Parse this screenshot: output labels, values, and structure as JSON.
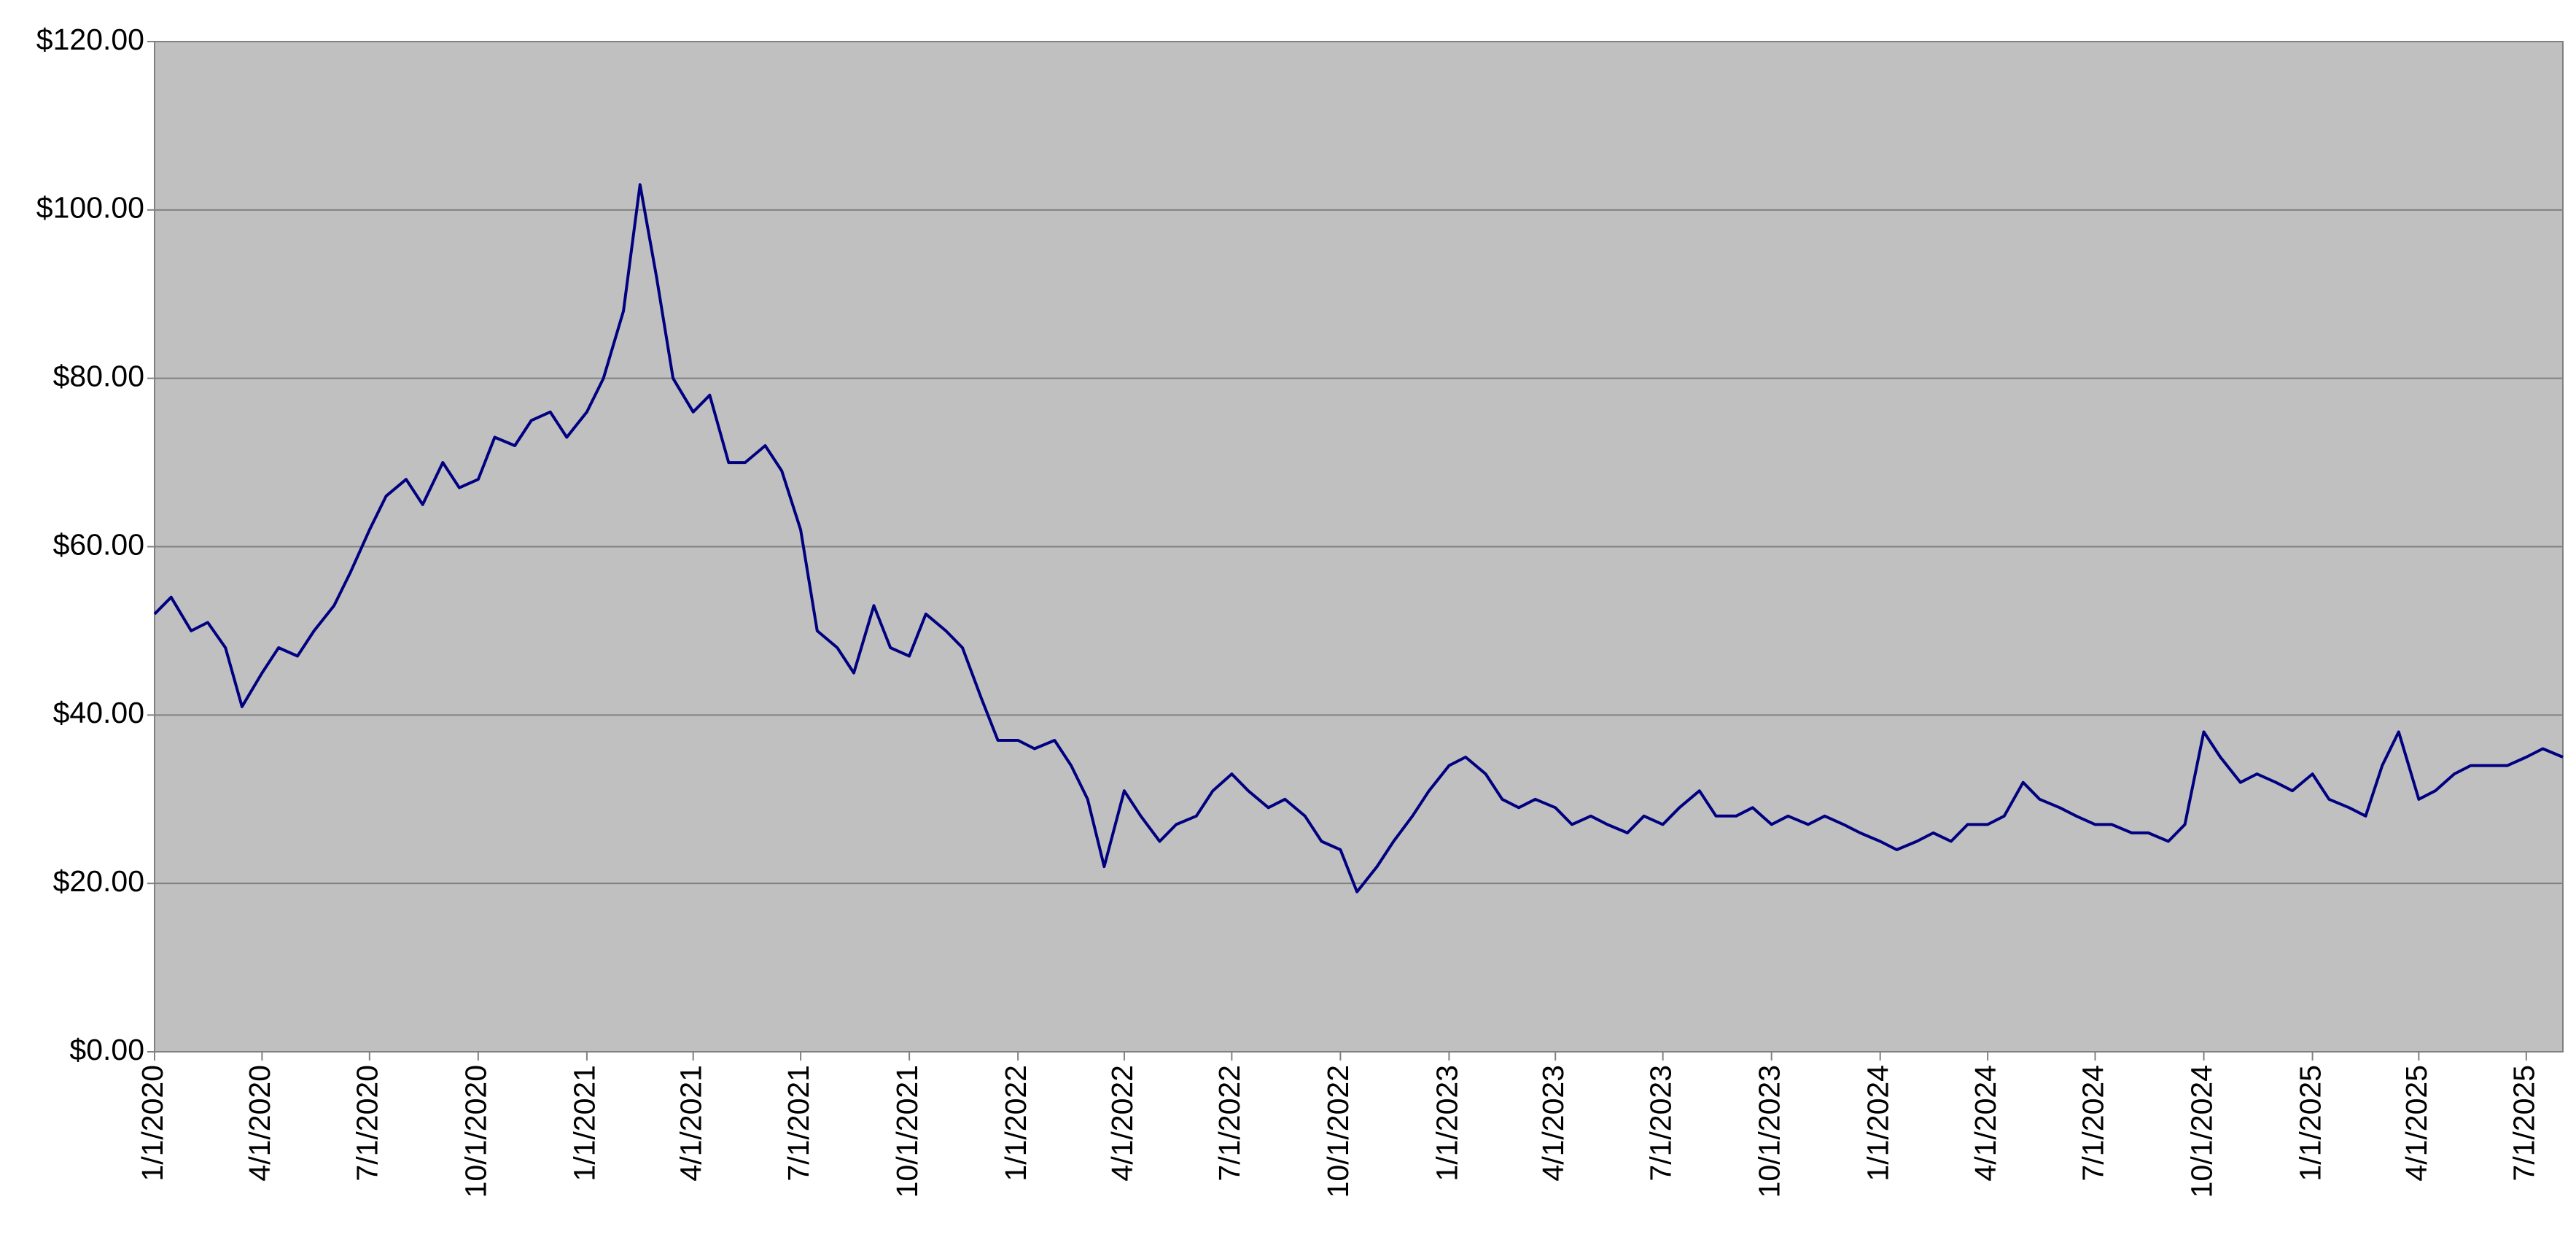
{
  "chart_data": {
    "type": "line",
    "x": [
      "2020-01-01",
      "2020-01-15",
      "2020-02-01",
      "2020-02-15",
      "2020-03-01",
      "2020-03-15",
      "2020-04-01",
      "2020-04-15",
      "2020-05-01",
      "2020-05-15",
      "2020-06-01",
      "2020-06-15",
      "2020-07-01",
      "2020-07-15",
      "2020-08-01",
      "2020-08-15",
      "2020-09-01",
      "2020-09-15",
      "2020-10-01",
      "2020-10-15",
      "2020-11-01",
      "2020-11-15",
      "2020-12-01",
      "2020-12-15",
      "2021-01-01",
      "2021-01-15",
      "2021-02-01",
      "2021-02-15",
      "2021-03-01",
      "2021-03-15",
      "2021-04-01",
      "2021-04-15",
      "2021-05-01",
      "2021-05-15",
      "2021-06-01",
      "2021-06-15",
      "2021-07-01",
      "2021-07-15",
      "2021-08-01",
      "2021-08-15",
      "2021-09-01",
      "2021-09-15",
      "2021-10-01",
      "2021-10-15",
      "2021-11-01",
      "2021-11-15",
      "2021-12-01",
      "2021-12-15",
      "2022-01-01",
      "2022-01-15",
      "2022-02-01",
      "2022-02-15",
      "2022-03-01",
      "2022-03-15",
      "2022-04-01",
      "2022-04-15",
      "2022-05-01",
      "2022-05-15",
      "2022-06-01",
      "2022-06-15",
      "2022-07-01",
      "2022-07-15",
      "2022-08-01",
      "2022-08-15",
      "2022-09-01",
      "2022-09-15",
      "2022-10-01",
      "2022-10-15",
      "2022-11-01",
      "2022-11-15",
      "2022-12-01",
      "2022-12-15",
      "2023-01-01",
      "2023-01-15",
      "2023-02-01",
      "2023-02-15",
      "2023-03-01",
      "2023-03-15",
      "2023-04-01",
      "2023-04-15",
      "2023-05-01",
      "2023-05-15",
      "2023-06-01",
      "2023-06-15",
      "2023-07-01",
      "2023-07-15",
      "2023-08-01",
      "2023-08-15",
      "2023-09-01",
      "2023-09-15",
      "2023-10-01",
      "2023-10-15",
      "2023-11-01",
      "2023-11-15",
      "2023-12-01",
      "2023-12-15",
      "2024-01-01",
      "2024-01-15",
      "2024-02-01",
      "2024-02-15",
      "2024-03-01",
      "2024-03-15",
      "2024-04-01",
      "2024-04-15",
      "2024-05-01",
      "2024-05-15",
      "2024-06-01",
      "2024-06-15",
      "2024-07-01",
      "2024-07-15",
      "2024-08-01",
      "2024-08-15",
      "2024-09-01",
      "2024-09-15",
      "2024-10-01",
      "2024-10-15",
      "2024-11-01",
      "2024-11-15",
      "2024-12-01",
      "2024-12-15",
      "2025-01-01",
      "2025-01-15",
      "2025-02-01",
      "2025-02-15",
      "2025-03-01",
      "2025-03-15",
      "2025-04-01",
      "2025-04-15",
      "2025-05-01",
      "2025-05-15",
      "2025-06-01",
      "2025-06-15",
      "2025-07-01",
      "2025-07-15",
      "2025-08-01"
    ],
    "values": [
      52,
      54,
      50,
      51,
      48,
      41,
      45,
      48,
      47,
      50,
      53,
      57,
      62,
      66,
      68,
      65,
      70,
      67,
      68,
      73,
      72,
      75,
      76,
      73,
      76,
      80,
      88,
      103,
      92,
      80,
      76,
      78,
      70,
      70,
      72,
      69,
      62,
      50,
      48,
      45,
      53,
      48,
      47,
      52,
      50,
      48,
      42,
      37,
      37,
      36,
      37,
      34,
      30,
      22,
      31,
      28,
      25,
      27,
      28,
      31,
      33,
      31,
      29,
      30,
      28,
      25,
      24,
      19,
      22,
      25,
      28,
      31,
      34,
      35,
      33,
      30,
      29,
      30,
      29,
      27,
      28,
      27,
      26,
      28,
      27,
      29,
      31,
      28,
      28,
      29,
      27,
      28,
      27,
      28,
      27,
      26,
      25,
      24,
      25,
      26,
      25,
      27,
      27,
      28,
      32,
      30,
      29,
      28,
      27,
      27,
      26,
      26,
      25,
      27,
      38,
      35,
      32,
      33,
      32,
      31,
      33,
      30,
      29,
      28,
      34,
      38,
      30,
      31,
      33,
      34,
      34,
      34,
      35,
      36,
      35
    ],
    "color": "#000080",
    "background": "#c0c0c0",
    "grid": true,
    "xlim": [
      "2020-01-01",
      "2025-08-01"
    ],
    "xticks": [
      {
        "value": "2020-01-01",
        "label": "1/1/2020"
      },
      {
        "value": "2020-04-01",
        "label": "4/1/2020"
      },
      {
        "value": "2020-07-01",
        "label": "7/1/2020"
      },
      {
        "value": "2020-10-01",
        "label": "10/1/2020"
      },
      {
        "value": "2021-01-01",
        "label": "1/1/2021"
      },
      {
        "value": "2021-04-01",
        "label": "4/1/2021"
      },
      {
        "value": "2021-07-01",
        "label": "7/1/2021"
      },
      {
        "value": "2021-10-01",
        "label": "10/1/2021"
      },
      {
        "value": "2022-01-01",
        "label": "1/1/2022"
      },
      {
        "value": "2022-04-01",
        "label": "4/1/2022"
      },
      {
        "value": "2022-07-01",
        "label": "7/1/2022"
      },
      {
        "value": "2022-10-01",
        "label": "10/1/2022"
      },
      {
        "value": "2023-01-01",
        "label": "1/1/2023"
      },
      {
        "value": "2023-04-01",
        "label": "4/1/2023"
      },
      {
        "value": "2023-07-01",
        "label": "7/1/2023"
      },
      {
        "value": "2023-10-01",
        "label": "10/1/2023"
      },
      {
        "value": "2024-01-01",
        "label": "1/1/2024"
      },
      {
        "value": "2024-04-01",
        "label": "4/1/2024"
      },
      {
        "value": "2024-07-01",
        "label": "7/1/2024"
      },
      {
        "value": "2024-10-01",
        "label": "10/1/2024"
      },
      {
        "value": "2025-01-01",
        "label": "1/1/2025"
      },
      {
        "value": "2025-04-01",
        "label": "4/1/2025"
      },
      {
        "value": "2025-07-01",
        "label": "7/1/2025"
      }
    ],
    "ylim": [
      0,
      120
    ],
    "yticks": [
      {
        "value": 0,
        "label": "$0.00"
      },
      {
        "value": 20,
        "label": "$20.00"
      },
      {
        "value": 40,
        "label": "$40.00"
      },
      {
        "value": 60,
        "label": "$60.00"
      },
      {
        "value": 80,
        "label": "$80.00"
      },
      {
        "value": 100,
        "label": "$100.00"
      },
      {
        "value": 120,
        "label": "$120.00"
      }
    ]
  }
}
